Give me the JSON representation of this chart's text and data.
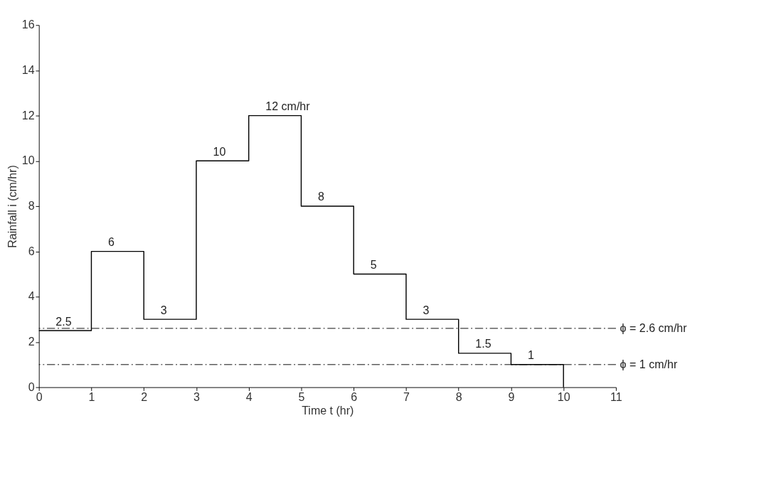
{
  "chart_data": {
    "type": "step",
    "xlabel": "Time t (hr)",
    "ylabel": "Rainfall i (cm/hr)",
    "x": [
      0,
      1,
      2,
      3,
      4,
      5,
      6,
      7,
      8,
      9,
      10
    ],
    "series": [
      {
        "color": "#000000",
        "values": [
          2.5,
          6,
          3,
          10,
          12,
          8,
          5,
          3,
          1.5,
          1,
          0
        ],
        "value_labels": [
          "2.5",
          "6",
          "3",
          "10",
          "12 cm/hr",
          "8",
          "5",
          "3",
          "1.5",
          "1",
          null
        ]
      }
    ],
    "xlim": [
      0,
      11
    ],
    "xticks": [
      0,
      1,
      2,
      3,
      4,
      5,
      6,
      7,
      8,
      9,
      10,
      11
    ],
    "ylim": [
      0,
      16
    ],
    "yticks": [
      0,
      2,
      4,
      6,
      8,
      10,
      12,
      14,
      16
    ],
    "grid": false,
    "marker": "none",
    "line_style": "solid",
    "ref_lines": [
      {
        "axis": "y",
        "value": 2.6,
        "label": "ϕ = 2.6 cm/hr",
        "color": "#000000",
        "line_style": "dashed"
      },
      {
        "axis": "y",
        "value": 1,
        "label": "ϕ = 1 cm/hr",
        "color": "#000000",
        "line_style": "dashed"
      }
    ]
  }
}
